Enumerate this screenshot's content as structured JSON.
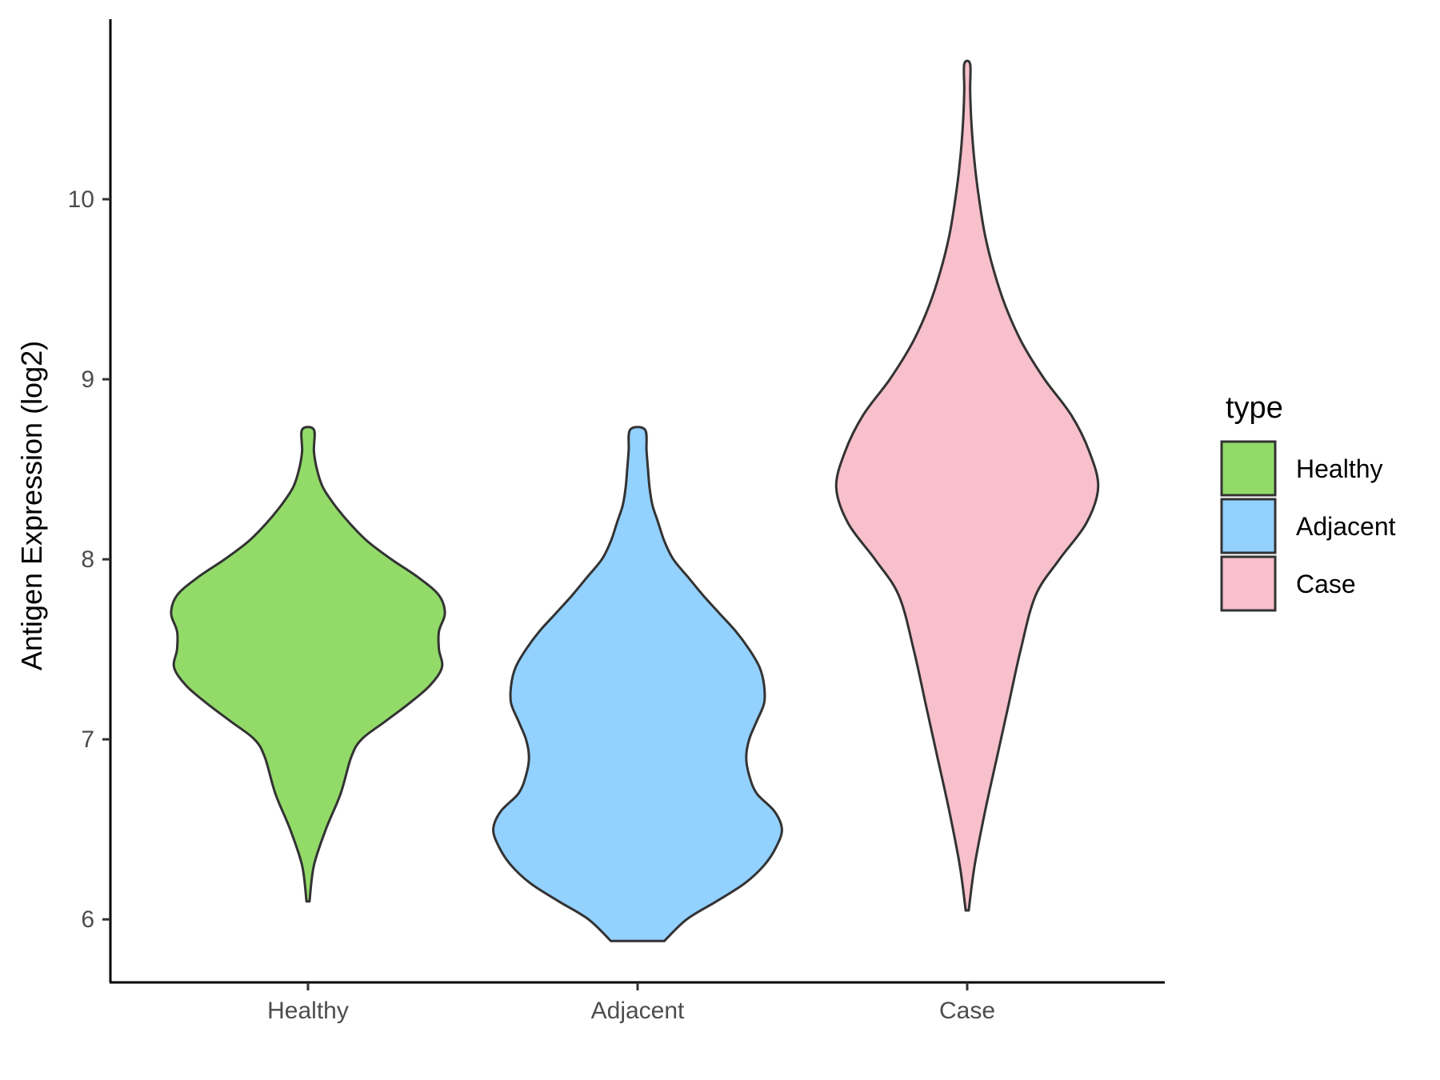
{
  "chart_data": {
    "type": "violin",
    "xlabel": "",
    "ylabel": "Antigen Expression (log2)",
    "ylim": [
      5.65,
      11.0
    ],
    "yticks": [
      6,
      7,
      8,
      9,
      10
    ],
    "categories": [
      "Healthy",
      "Adjacent",
      "Case"
    ],
    "grid": false,
    "legend": {
      "title": "type",
      "position": "right",
      "entries": [
        "Healthy",
        "Adjacent",
        "Case"
      ]
    },
    "series": [
      {
        "name": "Healthy",
        "color": "#93DB69",
        "min": 6.1,
        "max": 8.72,
        "profile": [
          [
            6.1,
            0.01
          ],
          [
            6.3,
            0.04
          ],
          [
            6.5,
            0.12
          ],
          [
            6.7,
            0.22
          ],
          [
            6.9,
            0.29
          ],
          [
            7.0,
            0.36
          ],
          [
            7.1,
            0.52
          ],
          [
            7.2,
            0.68
          ],
          [
            7.3,
            0.82
          ],
          [
            7.4,
            0.9
          ],
          [
            7.5,
            0.88
          ],
          [
            7.6,
            0.88
          ],
          [
            7.7,
            0.92
          ],
          [
            7.8,
            0.88
          ],
          [
            7.9,
            0.74
          ],
          [
            8.0,
            0.56
          ],
          [
            8.1,
            0.4
          ],
          [
            8.2,
            0.28
          ],
          [
            8.3,
            0.18
          ],
          [
            8.4,
            0.1
          ],
          [
            8.5,
            0.06
          ],
          [
            8.6,
            0.04
          ],
          [
            8.72,
            0.04
          ]
        ]
      },
      {
        "name": "Adjacent",
        "color": "#93D1FF",
        "min": 5.88,
        "max": 8.72,
        "profile": [
          [
            5.88,
            0.18
          ],
          [
            6.0,
            0.33
          ],
          [
            6.1,
            0.53
          ],
          [
            6.2,
            0.72
          ],
          [
            6.3,
            0.85
          ],
          [
            6.4,
            0.93
          ],
          [
            6.5,
            0.97
          ],
          [
            6.6,
            0.92
          ],
          [
            6.7,
            0.8
          ],
          [
            6.8,
            0.75
          ],
          [
            6.9,
            0.73
          ],
          [
            7.0,
            0.75
          ],
          [
            7.1,
            0.8
          ],
          [
            7.2,
            0.85
          ],
          [
            7.3,
            0.85
          ],
          [
            7.4,
            0.82
          ],
          [
            7.5,
            0.75
          ],
          [
            7.6,
            0.66
          ],
          [
            7.7,
            0.55
          ],
          [
            7.8,
            0.44
          ],
          [
            7.9,
            0.34
          ],
          [
            8.0,
            0.24
          ],
          [
            8.1,
            0.18
          ],
          [
            8.2,
            0.14
          ],
          [
            8.3,
            0.1
          ],
          [
            8.4,
            0.08
          ],
          [
            8.5,
            0.07
          ],
          [
            8.6,
            0.06
          ],
          [
            8.72,
            0.05
          ]
        ]
      },
      {
        "name": "Case",
        "color": "#F7C0CB",
        "min": 6.05,
        "max": 10.75,
        "profile": [
          [
            6.05,
            0.01
          ],
          [
            6.3,
            0.05
          ],
          [
            6.6,
            0.12
          ],
          [
            6.9,
            0.2
          ],
          [
            7.2,
            0.28
          ],
          [
            7.5,
            0.36
          ],
          [
            7.8,
            0.46
          ],
          [
            8.0,
            0.62
          ],
          [
            8.2,
            0.8
          ],
          [
            8.4,
            0.88
          ],
          [
            8.6,
            0.82
          ],
          [
            8.8,
            0.7
          ],
          [
            9.0,
            0.52
          ],
          [
            9.2,
            0.37
          ],
          [
            9.4,
            0.26
          ],
          [
            9.6,
            0.18
          ],
          [
            9.8,
            0.12
          ],
          [
            10.0,
            0.08
          ],
          [
            10.2,
            0.05
          ],
          [
            10.4,
            0.03
          ],
          [
            10.6,
            0.02
          ],
          [
            10.75,
            0.02
          ]
        ]
      }
    ]
  }
}
